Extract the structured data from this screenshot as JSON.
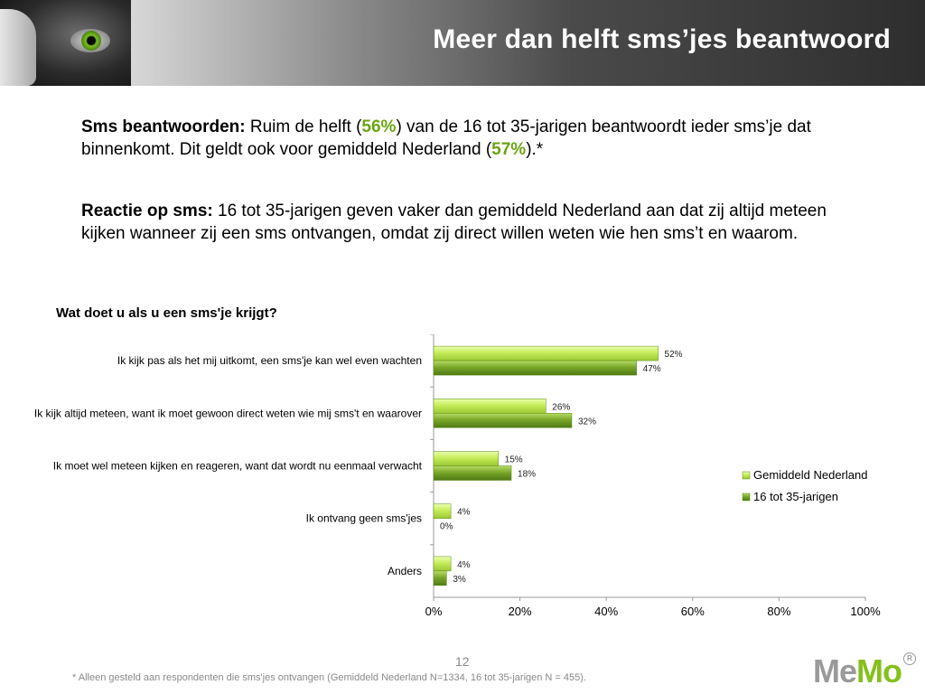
{
  "header": {
    "title": "Meer dan helft sms’jes beantwoord"
  },
  "paragraphs": [
    {
      "lead": "Sms beantwoorden:",
      "text_before": " Ruim de helft (",
      "highlight_1": "56%",
      "text_middle": ") van de 16 tot 35-jarigen beantwoordt ieder sms’je dat binnenkomt. Dit geldt ook voor gemiddeld Nederland (",
      "highlight_2": "57%",
      "text_after": ").*"
    },
    {
      "lead": "Reactie op sms:",
      "text": " 16 tot 35-jarigen geven vaker dan gemiddeld Nederland aan dat zij altijd meteen kijken wanneer zij een sms ontvangen, omdat zij direct willen weten wie hen sms’t en waarom."
    }
  ],
  "chart_data": {
    "type": "bar",
    "orientation": "horizontal",
    "title": "Wat doet u als u een sms'je krijgt?",
    "categories": [
      "Ik kijk pas als het mij uitkomt, een sms'je kan wel even wachten",
      "Ik kijk altijd meteen, want ik moet gewoon direct weten wie mij sms't en waarover",
      "Ik moet wel meteen kijken en reageren, want dat wordt nu eenmaal verwacht",
      "Ik ontvang geen sms'jes",
      "Anders"
    ],
    "series": [
      {
        "name": "Gemiddeld Nederland",
        "values": [
          52,
          26,
          15,
          4,
          4
        ],
        "labels": [
          "52%",
          "26%",
          "15%",
          "4%",
          "4%"
        ],
        "color": "#c6ec5a"
      },
      {
        "name": "16 tot 35-jarigen",
        "values": [
          47,
          32,
          18,
          0,
          3
        ],
        "labels": [
          "47%",
          "32%",
          "18%",
          "0%",
          "3%"
        ],
        "color": "#7aa82a"
      }
    ],
    "xlim": [
      0,
      100
    ],
    "xticks": [
      "0%",
      "20%",
      "40%",
      "60%",
      "80%",
      "100%"
    ],
    "grid": false,
    "legend_position": "right"
  },
  "footer": {
    "page_number": "12",
    "footnote": "* Alleen gesteld aan respondenten die sms'jes ontvangen (Gemiddeld Nederland N=1334, 16 tot 35-jarigen N = 455).",
    "logo_me": "Me",
    "logo_mo": "Mo",
    "logo_reg": "R"
  }
}
